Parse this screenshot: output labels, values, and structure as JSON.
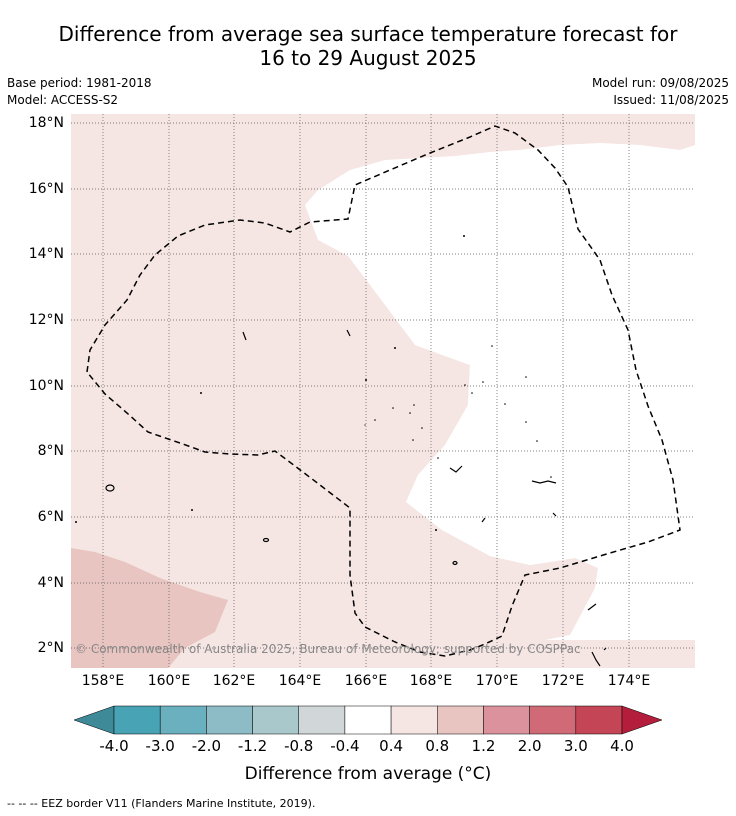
{
  "title_line1": "Difference from average sea surface temperature forecast for",
  "title_line2": "16 to 29 August 2025",
  "base_period": "Base period: 1981-2018",
  "model": "Model: ACCESS-S2",
  "model_run": "Model run: 09/08/2025",
  "issued": "Issued: 11/08/2025",
  "credit": "© Commonwealth of Australia 2025, Bureau of Meteorology; supported by COSPPac",
  "lat_ticks": [
    "18°N",
    "16°N",
    "14°N",
    "12°N",
    "10°N",
    "8°N",
    "6°N",
    "4°N",
    "2°N"
  ],
  "lon_ticks": [
    "158°E",
    "160°E",
    "162°E",
    "164°E",
    "166°E",
    "168°E",
    "170°E",
    "172°E",
    "174°E"
  ],
  "colorbar": {
    "labels": [
      "-4.0",
      "-3.0",
      "-2.0",
      "-1.2",
      "-0.8",
      "-0.4",
      "0.4",
      "0.8",
      "1.2",
      "2.0",
      "3.0",
      "4.0"
    ],
    "colors": [
      "#48a3b5",
      "#6bb0bf",
      "#8dbbc6",
      "#a8c8cb",
      "#d1d7d9",
      "#ffffff",
      "#f5e6e4",
      "#e8c5c1",
      "#dc929c",
      "#d06a76",
      "#c44555"
    ],
    "under_color": "#3e8a99",
    "over_color": "#b41e3c",
    "title": "Difference from average (°C)"
  },
  "footer": "--  --  -- EEZ border V11 (Flanders Marine Institute, 2019)."
}
